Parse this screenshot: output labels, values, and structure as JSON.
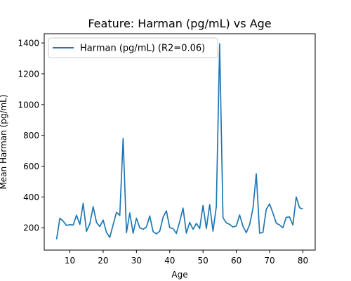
{
  "chart_data": {
    "type": "line",
    "title": "Feature: Harman (pg/mL) vs Age",
    "xlabel": "Age",
    "ylabel": "Mean Harman (pg/mL)",
    "xlim": [
      2.3,
      83.7
    ],
    "ylim": [
      55,
      1460
    ],
    "xticks": [
      10,
      20,
      30,
      40,
      50,
      60,
      70,
      80
    ],
    "yticks": [
      200,
      400,
      600,
      800,
      1000,
      1200,
      1400
    ],
    "grid": false,
    "legend_position": "top-left",
    "series": [
      {
        "name": "Harman (pg/mL) (R2=0.06)",
        "color": "#1f77b4",
        "x": [
          6,
          7,
          8,
          9,
          10,
          11,
          12,
          13,
          14,
          15,
          16,
          17,
          18,
          19,
          20,
          21,
          22,
          23,
          24,
          25,
          26,
          27,
          28,
          29,
          30,
          31,
          32,
          33,
          34,
          35,
          36,
          37,
          38,
          39,
          40,
          41,
          42,
          43,
          44,
          45,
          46,
          47,
          48,
          49,
          50,
          51,
          52,
          53,
          54,
          55,
          56,
          57,
          58,
          59,
          60,
          61,
          62,
          63,
          64,
          65,
          66,
          67,
          68,
          69,
          70,
          71,
          72,
          73,
          74,
          75,
          76,
          77,
          78,
          79,
          80
        ],
        "y": [
          125,
          262,
          243,
          215,
          220,
          218,
          282,
          222,
          358,
          177,
          225,
          337,
          235,
          208,
          250,
          170,
          137,
          220,
          300,
          280,
          780,
          168,
          296,
          165,
          262,
          200,
          190,
          205,
          277,
          175,
          160,
          178,
          268,
          310,
          200,
          195,
          163,
          240,
          328,
          165,
          235,
          190,
          228,
          195,
          345,
          195,
          350,
          178,
          338,
          1395,
          265,
          232,
          222,
          205,
          212,
          283,
          210,
          168,
          220,
          325,
          550,
          165,
          170,
          320,
          355,
          295,
          230,
          218,
          200,
          268,
          270,
          218,
          400,
          330,
          322
        ]
      }
    ]
  }
}
